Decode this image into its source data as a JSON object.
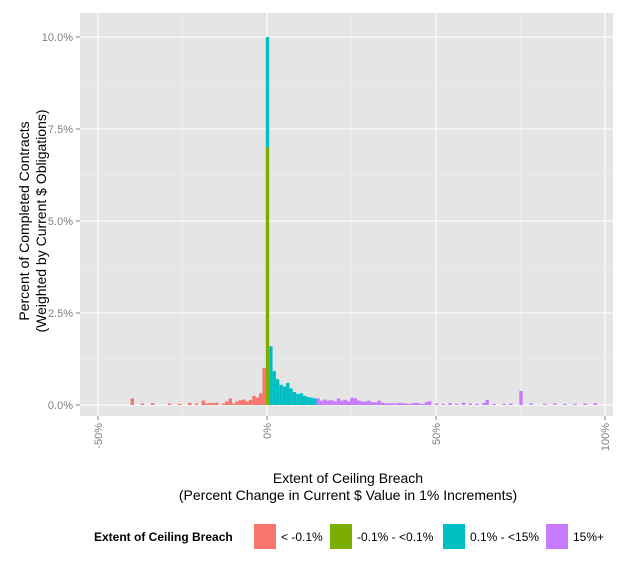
{
  "chart_data": {
    "type": "bar",
    "xlabel": [
      "Extent of Ceiling Breach",
      "(Percent Change in Current $ Value in 1% Increments)"
    ],
    "ylabel": [
      "Percent of Completed Contracts",
      "(Weighted by Current $ Obligations)"
    ],
    "xlim": [
      -0.5,
      1.0
    ],
    "ylim": [
      0,
      0.1
    ],
    "x_ticks": [
      -0.5,
      0,
      0.5,
      1.0
    ],
    "x_tick_labels": [
      "-50%",
      "0%",
      "50%",
      "100%"
    ],
    "y_ticks": [
      0,
      0.025,
      0.05,
      0.075,
      0.1
    ],
    "y_tick_labels": [
      "0.0%",
      "2.5%",
      "5.0%",
      "7.5%",
      "10.0%"
    ],
    "grid": true,
    "legend_position": "bottom",
    "legend_title": "Extent of Ceiling Breach",
    "series": [
      {
        "name": "< -0.1%",
        "color": "#F8766D",
        "points": [
          [
            -0.4,
            0.0018
          ],
          [
            -0.37,
            0.0004
          ],
          [
            -0.34,
            0.0005
          ],
          [
            -0.29,
            0.0004
          ],
          [
            -0.26,
            0.0003
          ],
          [
            -0.23,
            0.0006
          ],
          [
            -0.21,
            0.0004
          ],
          [
            -0.19,
            0.0012
          ],
          [
            -0.18,
            0.0004
          ],
          [
            -0.17,
            0.0006
          ],
          [
            -0.16,
            0.0005
          ],
          [
            -0.15,
            0.0006
          ],
          [
            -0.13,
            0.0004
          ],
          [
            -0.12,
            0.001
          ],
          [
            -0.11,
            0.0018
          ],
          [
            -0.1,
            0.0004
          ],
          [
            -0.09,
            0.001
          ],
          [
            -0.08,
            0.0013
          ],
          [
            -0.07,
            0.0015
          ],
          [
            -0.06,
            0.001
          ],
          [
            -0.05,
            0.0014
          ],
          [
            -0.04,
            0.0025
          ],
          [
            -0.03,
            0.002
          ],
          [
            -0.02,
            0.0032
          ],
          [
            -0.01,
            0.01
          ]
        ]
      },
      {
        "name": "-0.1% - <0.1%",
        "color": "#7CAE00",
        "points": [
          [
            0.0,
            0.07
          ]
        ]
      },
      {
        "name": "0.1% - <15%",
        "color": "#00BFC4",
        "points": [
          [
            0.0,
            0.03
          ],
          [
            0.01,
            0.016
          ],
          [
            0.02,
            0.0092
          ],
          [
            0.03,
            0.007
          ],
          [
            0.04,
            0.0055
          ],
          [
            0.05,
            0.005
          ],
          [
            0.06,
            0.006
          ],
          [
            0.07,
            0.0045
          ],
          [
            0.08,
            0.0035
          ],
          [
            0.09,
            0.003
          ],
          [
            0.1,
            0.0032
          ],
          [
            0.11,
            0.0025
          ],
          [
            0.12,
            0.0022
          ],
          [
            0.13,
            0.002
          ],
          [
            0.14,
            0.0018
          ]
        ]
      },
      {
        "name": "15%+",
        "color": "#C77CFF",
        "points": [
          [
            0.15,
            0.0018
          ],
          [
            0.16,
            0.0012
          ],
          [
            0.17,
            0.0015
          ],
          [
            0.18,
            0.0012
          ],
          [
            0.19,
            0.0013
          ],
          [
            0.2,
            0.001
          ],
          [
            0.21,
            0.0018
          ],
          [
            0.22,
            0.0012
          ],
          [
            0.23,
            0.0014
          ],
          [
            0.24,
            0.001
          ],
          [
            0.25,
            0.002
          ],
          [
            0.26,
            0.0018
          ],
          [
            0.27,
            0.0012
          ],
          [
            0.28,
            0.001
          ],
          [
            0.29,
            0.0009
          ],
          [
            0.3,
            0.0012
          ],
          [
            0.31,
            0.0008
          ],
          [
            0.32,
            0.0007
          ],
          [
            0.33,
            0.0012
          ],
          [
            0.34,
            0.0006
          ],
          [
            0.35,
            0.0005
          ],
          [
            0.36,
            0.0004
          ],
          [
            0.37,
            0.0005
          ],
          [
            0.38,
            0.0004
          ],
          [
            0.39,
            0.0006
          ],
          [
            0.4,
            0.0005
          ],
          [
            0.41,
            0.0004
          ],
          [
            0.42,
            0.0003
          ],
          [
            0.43,
            0.0005
          ],
          [
            0.44,
            0.0006
          ],
          [
            0.45,
            0.0004
          ],
          [
            0.46,
            0.0003
          ],
          [
            0.47,
            0.0008
          ],
          [
            0.48,
            0.001
          ],
          [
            0.5,
            0.0004
          ],
          [
            0.52,
            0.0003
          ],
          [
            0.54,
            0.0005
          ],
          [
            0.56,
            0.0003
          ],
          [
            0.58,
            0.0006
          ],
          [
            0.6,
            0.0004
          ],
          [
            0.62,
            0.0003
          ],
          [
            0.64,
            0.0005
          ],
          [
            0.65,
            0.0014
          ],
          [
            0.67,
            0.0003
          ],
          [
            0.7,
            0.0003
          ],
          [
            0.72,
            0.0004
          ],
          [
            0.75,
            0.0038
          ],
          [
            0.78,
            0.0004
          ],
          [
            0.82,
            0.0003
          ],
          [
            0.85,
            0.0004
          ],
          [
            0.88,
            0.0003
          ],
          [
            0.91,
            0.0003
          ],
          [
            0.94,
            0.0004
          ],
          [
            0.97,
            0.0005
          ]
        ]
      }
    ]
  }
}
